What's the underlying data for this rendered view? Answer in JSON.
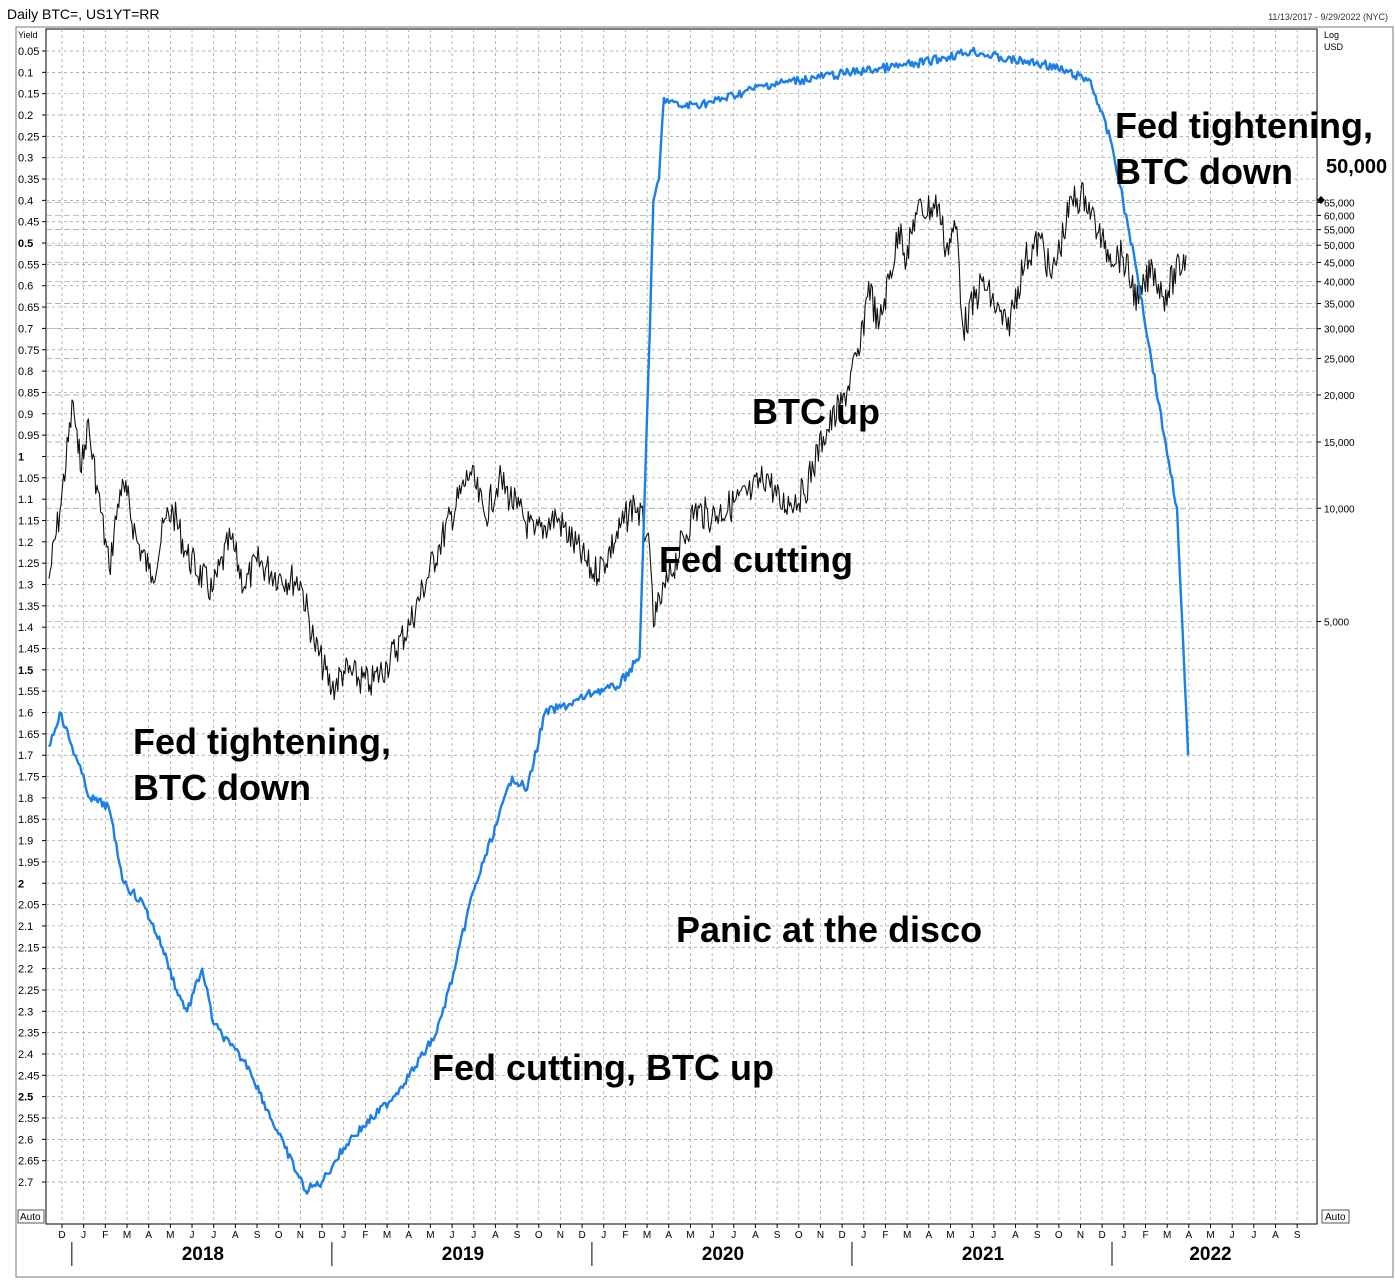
{
  "header": {
    "title": "Daily BTC=, US1YT=RR",
    "date_range": "11/13/2017 - 9/29/2022 (NYC)"
  },
  "left_axis": {
    "unit_label": "Yield",
    "auto_label": "Auto",
    "inverted": true,
    "ticks": [
      "0.05",
      "0.1",
      "0.15",
      "0.2",
      "0.25",
      "0.3",
      "0.35",
      "0.4",
      "0.45",
      "0.5",
      "0.55",
      "0.6",
      "0.65",
      "0.7",
      "0.75",
      "0.8",
      "0.85",
      "0.9",
      "0.95",
      "1",
      "1.05",
      "1.1",
      "1.15",
      "1.2",
      "1.25",
      "1.3",
      "1.35",
      "1.4",
      "1.45",
      "1.5",
      "1.55",
      "1.6",
      "1.65",
      "1.7",
      "1.75",
      "1.8",
      "1.85",
      "1.9",
      "1.95",
      "2",
      "2.05",
      "2.1",
      "2.15",
      "2.2",
      "2.25",
      "2.3",
      "2.35",
      "2.4",
      "2.45",
      "2.5",
      "2.55",
      "2.6",
      "2.65",
      "2.7"
    ],
    "bold_ticks": [
      "0.5",
      "1",
      "1.5",
      "2",
      "2.5"
    ]
  },
  "right_axis": {
    "scale_label": "Log",
    "unit_label": "USD",
    "auto_label": "Auto",
    "ticks": [
      "65,000",
      "60,000",
      "55,000",
      "50,000",
      "45,000",
      "40,000",
      "35,000",
      "30,000",
      "25,000",
      "20,000",
      "15,000",
      "10,000",
      "5,000"
    ],
    "tick_values": [
      65000,
      60000,
      55000,
      50000,
      45000,
      40000,
      35000,
      30000,
      25000,
      20000,
      15000,
      10000,
      5000
    ],
    "current_value_label": "50,000"
  },
  "x_axis": {
    "months": [
      "D",
      "J",
      "F",
      "M",
      "A",
      "M",
      "J",
      "J",
      "A",
      "S",
      "O",
      "N",
      "D",
      "J",
      "F",
      "M",
      "A",
      "M",
      "J",
      "J",
      "A",
      "S",
      "O",
      "N",
      "D",
      "J",
      "F",
      "M",
      "A",
      "M",
      "J",
      "J",
      "A",
      "S",
      "O",
      "N",
      "D",
      "J",
      "F",
      "M",
      "A",
      "M",
      "J",
      "J",
      "A",
      "S",
      "O",
      "N",
      "D",
      "J",
      "F",
      "M",
      "A",
      "M",
      "J",
      "J",
      "A",
      "S"
    ],
    "years": [
      "2018",
      "2019",
      "2020",
      "2021",
      "2022"
    ]
  },
  "annotations": [
    {
      "lines": [
        "Fed tightening,",
        "BTC down"
      ]
    },
    {
      "lines": [
        "Fed cutting, BTC up"
      ]
    },
    {
      "lines": [
        "Panic at the disco"
      ]
    },
    {
      "lines": [
        "Fed cutting"
      ]
    },
    {
      "lines": [
        "BTC up"
      ]
    },
    {
      "lines": [
        "Fed tightening,",
        "BTC down"
      ]
    }
  ],
  "colors": {
    "btc_series": "#111111",
    "yield_series": "#1a7fe6",
    "grid": "#9a9a9a",
    "background": "#ffffff"
  },
  "chart_data": {
    "type": "line",
    "x_range": [
      "2017-11-13",
      "2022-09-29"
    ],
    "series": [
      {
        "axis": "right-log",
        "color": "#111111",
        "points": [
          [
            "2017-11-13",
            6500
          ],
          [
            "2017-11-28",
            9800
          ],
          [
            "2017-12-17",
            19200
          ],
          [
            "2017-12-24",
            14000
          ],
          [
            "2018-01-01",
            13500
          ],
          [
            "2018-01-06",
            17000
          ],
          [
            "2018-01-20",
            11500
          ],
          [
            "2018-02-06",
            6900
          ],
          [
            "2018-02-20",
            11200
          ],
          [
            "2018-03-01",
            10800
          ],
          [
            "2018-03-15",
            8200
          ],
          [
            "2018-04-01",
            6900
          ],
          [
            "2018-04-06",
            6600
          ],
          [
            "2018-04-25",
            9400
          ],
          [
            "2018-05-05",
            9800
          ],
          [
            "2018-05-25",
            7500
          ],
          [
            "2018-06-29",
            6000
          ],
          [
            "2018-07-25",
            8300
          ],
          [
            "2018-08-14",
            6200
          ],
          [
            "2018-09-01",
            7200
          ],
          [
            "2018-10-01",
            6600
          ],
          [
            "2018-11-01",
            6400
          ],
          [
            "2018-11-20",
            4400
          ],
          [
            "2018-12-15",
            3300
          ],
          [
            "2019-01-01",
            3700
          ],
          [
            "2019-02-07",
            3400
          ],
          [
            "2019-03-01",
            3850
          ],
          [
            "2019-04-02",
            4900
          ],
          [
            "2019-05-14",
            8000
          ],
          [
            "2019-06-26",
            12500
          ],
          [
            "2019-07-17",
            9500
          ],
          [
            "2019-08-06",
            11900
          ],
          [
            "2019-09-01",
            10000
          ],
          [
            "2019-09-25",
            8500
          ],
          [
            "2019-10-26",
            9500
          ],
          [
            "2019-12-17",
            6700
          ],
          [
            "2020-01-01",
            7200
          ],
          [
            "2020-02-13",
            10400
          ],
          [
            "2020-03-01",
            8500
          ],
          [
            "2020-03-12",
            4900
          ],
          [
            "2020-03-15",
            5300
          ],
          [
            "2020-04-01",
            6500
          ],
          [
            "2020-05-07",
            9900
          ],
          [
            "2020-06-01",
            9500
          ],
          [
            "2020-07-27",
            11000
          ],
          [
            "2020-08-17",
            12300
          ],
          [
            "2020-09-05",
            10200
          ],
          [
            "2020-10-08",
            10900
          ],
          [
            "2020-11-05",
            15500
          ],
          [
            "2020-12-01",
            19000
          ],
          [
            "2020-12-27",
            26500
          ],
          [
            "2021-01-08",
            40000
          ],
          [
            "2021-01-22",
            30000
          ],
          [
            "2021-02-21",
            57000
          ],
          [
            "2021-02-28",
            45000
          ],
          [
            "2021-03-13",
            61000
          ],
          [
            "2021-04-14",
            64000
          ],
          [
            "2021-04-25",
            49000
          ],
          [
            "2021-05-10",
            56000
          ],
          [
            "2021-05-19",
            30000
          ],
          [
            "2021-06-15",
            40000
          ],
          [
            "2021-07-20",
            29800
          ],
          [
            "2021-08-15",
            46000
          ],
          [
            "2021-09-06",
            52000
          ],
          [
            "2021-09-21",
            40800
          ],
          [
            "2021-10-20",
            66000
          ],
          [
            "2021-11-08",
            67500
          ],
          [
            "2021-11-26",
            54000
          ],
          [
            "2021-12-04",
            49000
          ],
          [
            "2021-12-31",
            46300
          ],
          [
            "2022-01-22",
            35000
          ],
          [
            "2022-02-10",
            44000
          ],
          [
            "2022-02-24",
            36500
          ],
          [
            "2022-03-28",
            47000
          ]
        ]
      },
      {
        "axis": "left-inverted",
        "color": "#1a7fe6",
        "points": [
          [
            "2017-11-13",
            1.68
          ],
          [
            "2017-11-28",
            1.6
          ],
          [
            "2017-12-20",
            1.7
          ],
          [
            "2018-01-10",
            1.8
          ],
          [
            "2018-02-05",
            1.82
          ],
          [
            "2018-02-25",
            2.0
          ],
          [
            "2018-03-25",
            2.05
          ],
          [
            "2018-04-20",
            2.15
          ],
          [
            "2018-05-10",
            2.25
          ],
          [
            "2018-05-25",
            2.3
          ],
          [
            "2018-06-15",
            2.2
          ],
          [
            "2018-07-01",
            2.33
          ],
          [
            "2018-07-25",
            2.38
          ],
          [
            "2018-08-20",
            2.43
          ],
          [
            "2018-09-15",
            2.53
          ],
          [
            "2018-10-10",
            2.62
          ],
          [
            "2018-11-08",
            2.72
          ],
          [
            "2018-12-01",
            2.7
          ],
          [
            "2018-12-20",
            2.65
          ],
          [
            "2019-01-10",
            2.6
          ],
          [
            "2019-02-10",
            2.55
          ],
          [
            "2019-03-10",
            2.5
          ],
          [
            "2019-04-10",
            2.43
          ],
          [
            "2019-05-10",
            2.35
          ],
          [
            "2019-06-05",
            2.2
          ],
          [
            "2019-06-25",
            2.05
          ],
          [
            "2019-07-15",
            1.95
          ],
          [
            "2019-08-05",
            1.85
          ],
          [
            "2019-08-25",
            1.75
          ],
          [
            "2019-09-15",
            1.78
          ],
          [
            "2019-10-10",
            1.6
          ],
          [
            "2019-11-15",
            1.58
          ],
          [
            "2019-12-20",
            1.55
          ],
          [
            "2020-01-20",
            1.54
          ],
          [
            "2020-02-20",
            1.47
          ],
          [
            "2020-03-05",
            0.7
          ],
          [
            "2020-03-10",
            0.4
          ],
          [
            "2020-03-18",
            0.35
          ],
          [
            "2020-03-25",
            0.16
          ],
          [
            "2020-04-15",
            0.18
          ],
          [
            "2020-06-01",
            0.17
          ],
          [
            "2020-08-15",
            0.13
          ],
          [
            "2020-12-15",
            0.1
          ],
          [
            "2021-03-15",
            0.08
          ],
          [
            "2021-06-01",
            0.05
          ],
          [
            "2021-07-20",
            0.07
          ],
          [
            "2021-09-10",
            0.08
          ],
          [
            "2021-11-15",
            0.12
          ],
          [
            "2021-12-15",
            0.27
          ],
          [
            "2022-01-20",
            0.57
          ],
          [
            "2022-02-25",
            0.95
          ],
          [
            "2022-03-15",
            1.12
          ],
          [
            "2022-03-31",
            1.7
          ]
        ]
      }
    ]
  }
}
